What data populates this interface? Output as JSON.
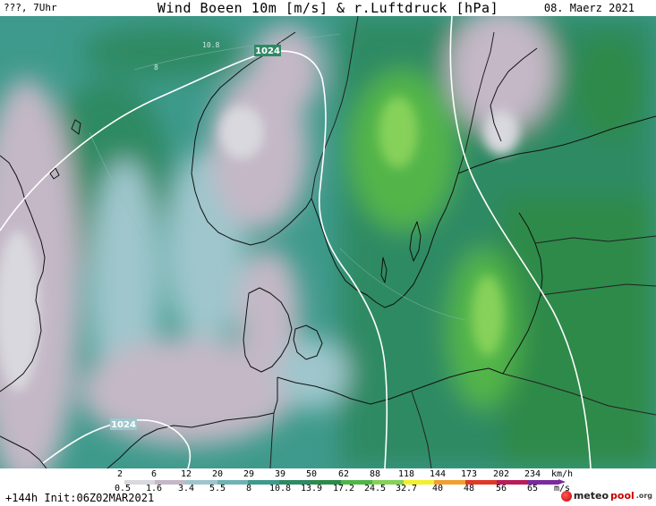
{
  "header": {
    "location": "???, 7Uhr",
    "title": "Wind Boeen 10m [m/s] & r.Luftdruck [hPa]",
    "date": "08. Maerz 2021"
  },
  "legend": {
    "kmh_ticks": [
      "2",
      "6",
      "12",
      "20",
      "29",
      "39",
      "50",
      "62",
      "88",
      "118",
      "144",
      "173",
      "202",
      "234"
    ],
    "kmh_unit": "km/h",
    "ms_ticks": [
      "0.5",
      "1.6",
      "3.4",
      "5.5",
      "8",
      "10.8",
      "13.9",
      "17.2",
      "24.5",
      "32.7",
      "40",
      "48",
      "56",
      "65"
    ],
    "ms_unit": "m/s",
    "colors": [
      "#ffffff",
      "#d8d8de",
      "#c4b8c6",
      "#9ec6cc",
      "#6fb2b4",
      "#3e9a8c",
      "#2f8a64",
      "#2e8a4a",
      "#52b548",
      "#86d15a",
      "#f0f030",
      "#f0a030",
      "#e03828",
      "#b81c5a",
      "#7a2a9a"
    ]
  },
  "isobars": [
    {
      "label": "1024"
    },
    {
      "label": "1024"
    }
  ],
  "contour_labels": [
    "10.8",
    "8"
  ],
  "footer": {
    "init": "+144h Init:06Z02MAR2021",
    "logo_main": "meteo",
    "logo_accent": "pool",
    "logo_suffix": ".org"
  }
}
